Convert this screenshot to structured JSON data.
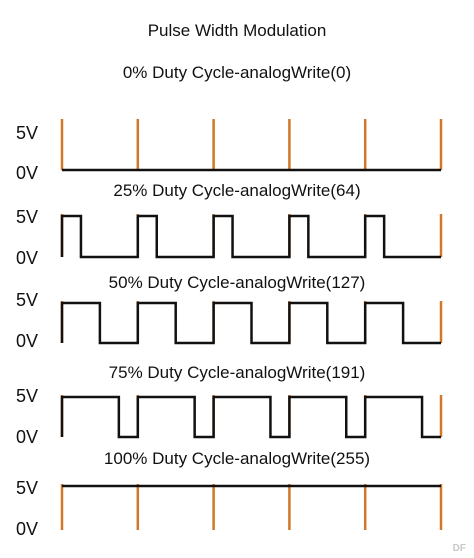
{
  "title": "Pulse Width Modulation",
  "colors": {
    "period_marker": "#d2782a",
    "signal": "#111111"
  },
  "watermark": "DF",
  "chart_data": {
    "type": "line",
    "title": "Pulse Width Modulation",
    "periods": 5,
    "y_levels": [
      "5V",
      "0V"
    ],
    "panels": [
      {
        "label": "0% Duty Cycle-analogWrite(0)",
        "duty": 0.0,
        "high": "5V",
        "low": "0V"
      },
      {
        "label": "25% Duty Cycle-analogWrite(64)",
        "duty": 0.25,
        "high": "5V",
        "low": "0V"
      },
      {
        "label": "50% Duty Cycle-analogWrite(127)",
        "duty": 0.5,
        "high": "5V",
        "low": "0V"
      },
      {
        "label": "75% Duty Cycle-analogWrite(191)",
        "duty": 0.75,
        "high": "5V",
        "low": "0V"
      },
      {
        "label": "100% Duty Cycle-analogWrite(255)",
        "duty": 1.0,
        "high": "5V",
        "low": "0V"
      }
    ]
  }
}
